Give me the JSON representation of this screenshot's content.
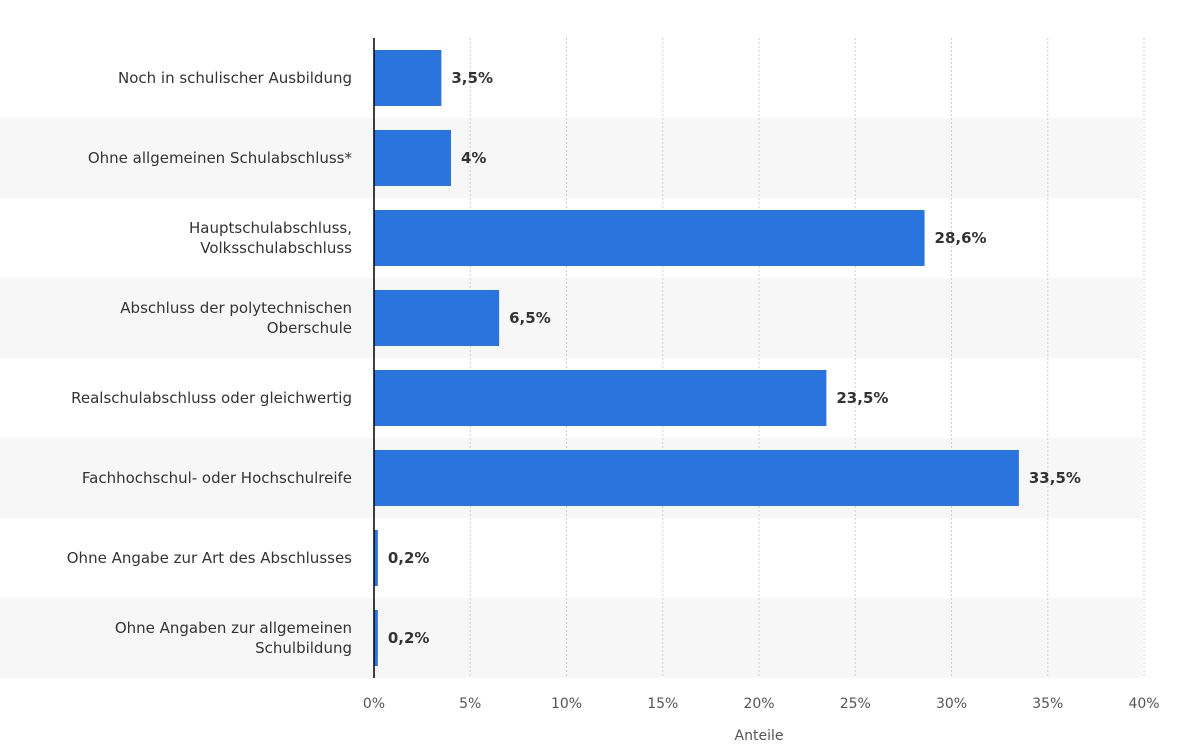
{
  "chart_data": {
    "type": "bar",
    "orientation": "horizontal",
    "categories": [
      [
        "Noch in schulischer Ausbildung"
      ],
      [
        "Ohne allgemeinen Schulabschluss*"
      ],
      [
        "Hauptschulabschluss,",
        "Volksschulabschluss"
      ],
      [
        "Abschluss der polytechnischen",
        "Oberschule"
      ],
      [
        "Realschulabschluss oder gleichwertig"
      ],
      [
        "Fachhochschul- oder Hochschulreife"
      ],
      [
        "Ohne Angabe zur Art des Abschlusses"
      ],
      [
        "Ohne Angaben zur allgemeinen",
        "Schulbildung"
      ]
    ],
    "values": [
      3.5,
      4,
      28.6,
      6.5,
      23.5,
      33.5,
      0.2,
      0.2
    ],
    "value_labels": [
      "3,5%",
      "4%",
      "28,6%",
      "6,5%",
      "23,5%",
      "33,5%",
      "0,2%",
      "0,2%"
    ],
    "xlim": [
      0,
      40
    ],
    "xticks": [
      0,
      5,
      10,
      15,
      20,
      25,
      30,
      35,
      40
    ],
    "xtick_labels": [
      "0%",
      "5%",
      "10%",
      "15%",
      "20%",
      "25%",
      "30%",
      "35%",
      "40%"
    ],
    "xlabel": "Anteile",
    "ylabel": "",
    "grid": true,
    "alternating_row_bands": true,
    "bar_color": "#2a74dd"
  }
}
